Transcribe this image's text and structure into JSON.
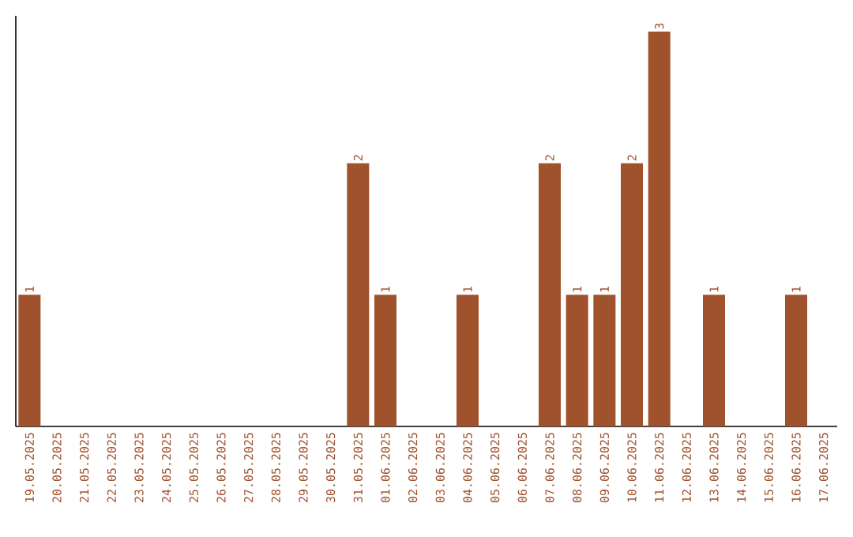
{
  "chart_data": {
    "type": "bar",
    "categories": [
      "19.05.2025",
      "20.05.2025",
      "21.05.2025",
      "22.05.2025",
      "23.05.2025",
      "24.05.2025",
      "25.05.2025",
      "26.05.2025",
      "27.05.2025",
      "28.05.2025",
      "29.05.2025",
      "30.05.2025",
      "31.05.2025",
      "01.06.2025",
      "02.06.2025",
      "03.06.2025",
      "04.06.2025",
      "05.06.2025",
      "06.06.2025",
      "07.06.2025",
      "08.06.2025",
      "09.06.2025",
      "10.06.2025",
      "11.06.2025",
      "12.06.2025",
      "13.06.2025",
      "14.06.2025",
      "15.06.2025",
      "16.06.2025",
      "17.06.2025"
    ],
    "values": [
      1,
      0,
      0,
      0,
      0,
      0,
      0,
      0,
      0,
      0,
      0,
      0,
      2,
      1,
      0,
      0,
      1,
      0,
      0,
      2,
      1,
      1,
      2,
      3,
      0,
      1,
      0,
      0,
      1,
      0
    ],
    "value_labels": [
      "1",
      null,
      null,
      null,
      null,
      null,
      null,
      null,
      null,
      null,
      null,
      null,
      "2",
      "1",
      null,
      null,
      "1",
      null,
      null,
      "2",
      "1",
      "1",
      "2",
      "3",
      null,
      "1",
      null,
      null,
      "1",
      null
    ],
    "color": "#a0522d",
    "ylim": [
      0,
      3.12
    ],
    "tick_labels": "x",
    "grid": false
  }
}
